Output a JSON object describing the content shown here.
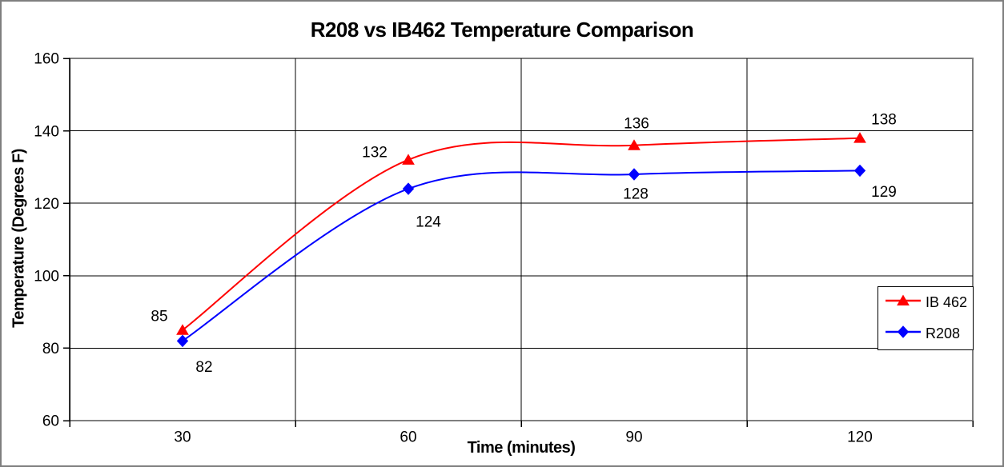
{
  "chart_data": {
    "type": "line",
    "title": "R208 vs IB462 Temperature Comparison",
    "xlabel": "Time (minutes)",
    "ylabel": "Temperature (Degrees F)",
    "x_categories": [
      "30",
      "60",
      "90",
      "120"
    ],
    "x": [
      30,
      60,
      90,
      120
    ],
    "ylim": [
      60,
      160
    ],
    "yticks": [
      60,
      80,
      100,
      120,
      140,
      160
    ],
    "grid": "both",
    "smooth_lines": true,
    "legend_position": "right",
    "colors": {
      "plot_border": "#7f7f7f",
      "gridline": "#000000",
      "axis": "#000000",
      "background": "#ffffff"
    },
    "series": [
      {
        "name": "IB 462",
        "color": "#ff0000",
        "marker": "triangle",
        "values": [
          85,
          132,
          136,
          138
        ],
        "point_labels": [
          "85",
          "132",
          "136",
          "138"
        ],
        "label_offsets": [
          [
            -29,
            -18
          ],
          [
            -42,
            -10
          ],
          [
            3,
            -28
          ],
          [
            30,
            -24
          ]
        ]
      },
      {
        "name": "R208",
        "color": "#0000ff",
        "marker": "diamond",
        "values": [
          82,
          124,
          128,
          129
        ],
        "point_labels": [
          "82",
          "124",
          "128",
          "129"
        ],
        "label_offsets": [
          [
            27,
            32
          ],
          [
            25,
            41
          ],
          [
            2,
            24
          ],
          [
            30,
            26
          ]
        ]
      }
    ]
  }
}
